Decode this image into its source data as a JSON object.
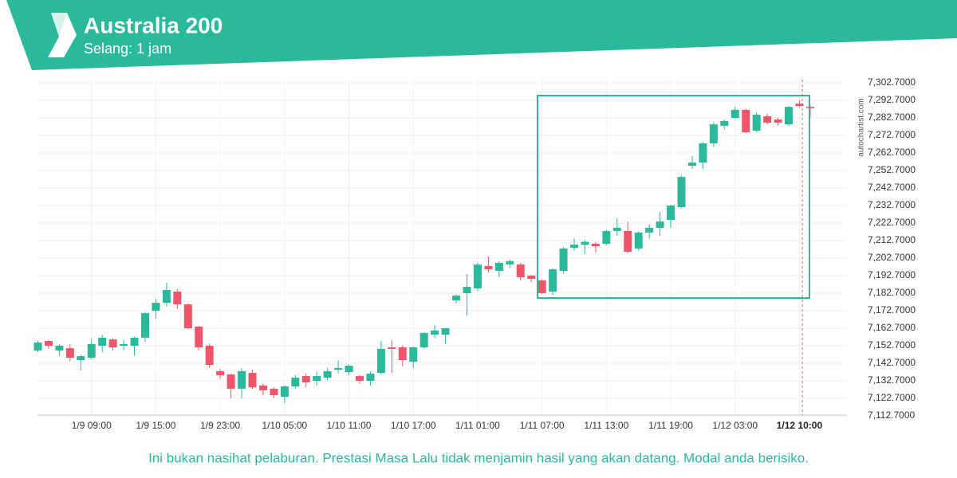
{
  "chart_data": {
    "type": "candlestick",
    "title": "Australia 200",
    "subtitle": "Selang: 1 jam",
    "watermark": "autochartist.com",
    "disclaimer": "Ini bukan nasihat pelaburan. Prestasi Masa Lalu tidak menjamin hasil yang akan datang. Modal anda berisiko.",
    "categories": [
      null,
      null,
      null,
      null,
      null,
      "1/9 09:00",
      null,
      null,
      null,
      null,
      null,
      "1/9 15:00",
      null,
      null,
      null,
      null,
      null,
      "1/9 23:00",
      null,
      null,
      null,
      null,
      null,
      "1/10 05:00",
      null,
      null,
      null,
      null,
      null,
      "1/10 11:00",
      null,
      null,
      null,
      null,
      null,
      "1/10 17:00",
      null,
      null,
      null,
      null,
      null,
      "1/11 01:00",
      null,
      null,
      null,
      null,
      null,
      "1/11 07:00",
      null,
      null,
      null,
      null,
      null,
      "1/11 13:00",
      null,
      null,
      null,
      null,
      null,
      "1/11 19:00",
      null,
      null,
      null,
      null,
      null,
      "1/12 03:00",
      null,
      null,
      null,
      null,
      null,
      "1/12 10:00",
      null
    ],
    "open": [
      7150.0,
      7155.4,
      7150.0,
      7151.3,
      7144.5,
      7145.9,
      7152.7,
      7156.3,
      7152.7,
      7152.7,
      7157.3,
      7172.7,
      7177.2,
      7183.6,
      7176.3,
      7163.6,
      7152.7,
      7138.2,
      7136.3,
      7128.2,
      7137.2,
      7130.0,
      7128.2,
      7123.6,
      7129.5,
      7135.4,
      7132.7,
      7134.5,
      7139.0,
      7137.7,
      7135.4,
      7132.7,
      7137.2,
      7151.8,
      7151.8,
      7143.6,
      7151.8,
      7159.0,
      7159.0,
      7178.6,
      7182.7,
      7185.4,
      7198.2,
      7195.4,
      7199.1,
      7199.1,
      7192.7,
      7190.0,
      7183.6,
      7195.4,
      7208.6,
      7210.4,
      7210.9,
      7210.9,
      7218.2,
      7218.2,
      7208.2,
      7217.3,
      7220.0,
      7224.5,
      7231.8,
      7255.4,
      7257.2,
      7268.2,
      7278.2,
      7282.7,
      7287.3,
      7275.4,
      7283.6,
      7281.8,
      7279.0,
      7290.9,
      7289.0
    ],
    "high": [
      7155.5,
      7156,
      7153.5,
      7153.6,
      7147.5,
      7157,
      7159,
      7157,
      7156,
      7158,
      7172,
      7179.5,
      7188.6,
      7185,
      7177,
      7164,
      7154,
      7139.5,
      7137,
      7140,
      7139,
      7131,
      7129,
      7130,
      7136,
      7137,
      7138,
      7140,
      7144.5,
      7142,
      7136,
      7138,
      7155.4,
      7156,
      7153,
      7152,
      7160.5,
      7164.5,
      7163,
      7182,
      7193.6,
      7200,
      7203.6,
      7201,
      7202,
      7200,
      7193,
      7190.5,
      7197,
      7209,
      7214,
      7213,
      7212,
      7219,
      7225.4,
      7223.6,
      7218,
      7222,
      7229,
      7233,
      7250,
      7260.9,
      7269,
      7280,
      7281.8,
      7289,
      7288,
      7286,
      7285,
      7282.7,
      7289.5,
      7292.7,
      7290
    ],
    "low": [
      7149,
      7151,
      7147,
      7143.6,
      7138.6,
      7145,
      7149,
      7150,
      7150,
      7147,
      7155,
      7168,
      7175,
      7173.6,
      7162,
      7150,
      7140,
      7134,
      7122.7,
      7122.7,
      7128,
      7124.5,
      7123,
      7120,
      7128,
      7129,
      7130,
      7133,
      7137,
      7136,
      7131,
      7130,
      7136,
      7137,
      7141,
      7140,
      7151,
      7157,
      7153.6,
      7177,
      7170,
      7184,
      7194.5,
      7191.8,
      7197,
      7190,
      7189,
      7182,
      7181.8,
      7194,
      7207,
      7205,
      7206,
      7210,
      7215.4,
      7205.4,
      7207,
      7214,
      7215.4,
      7220,
      7231,
      7253.6,
      7253.6,
      7266,
      7276,
      7282,
      7274,
      7274.5,
      7279,
      7278.2,
      7278,
      7289,
      7282.7
    ],
    "close": [
      7154.5,
      7152.7,
      7152.7,
      7145.9,
      7146.8,
      7153.6,
      7157.3,
      7151.8,
      7153.6,
      7157.3,
      7171.3,
      7177.2,
      7184.5,
      7176.3,
      7162.7,
      7151.8,
      7141.8,
      7135.9,
      7128.2,
      7138.2,
      7129.0,
      7127.3,
      7124.5,
      7129.5,
      7134.5,
      7131.8,
      7135.4,
      7138.2,
      7140.0,
      7141.3,
      7132.7,
      7136.8,
      7150.9,
      7150.9,
      7144.5,
      7151.8,
      7160.0,
      7161.4,
      7162.7,
      7181.3,
      7186.3,
      7199.0,
      7196.3,
      7200.0,
      7201.0,
      7191.8,
      7190.9,
      7182.7,
      7196.3,
      7208.2,
      7210.4,
      7212.0,
      7209.5,
      7218.2,
      7220.0,
      7206.3,
      7217.3,
      7220.0,
      7223.6,
      7232.7,
      7249.0,
      7257.2,
      7268.2,
      7279.0,
      7280.9,
      7287.3,
      7274.5,
      7284.5,
      7280.0,
      7280.0,
      7289.0,
      7289.5,
      7288.2
    ],
    "up_color": "#2bb99b",
    "down_color": "#f0566b",
    "ylim": [
      7112.7,
      7302.7
    ],
    "yticks": [
      {
        "value": 7112.7,
        "label": "7,112.7000"
      },
      {
        "value": 7122.7,
        "label": "7,122.7000"
      },
      {
        "value": 7132.7,
        "label": "7,132.7000"
      },
      {
        "value": 7142.7,
        "label": "7,142.7000"
      },
      {
        "value": 7152.7,
        "label": "7,152.7000"
      },
      {
        "value": 7162.7,
        "label": "7,162.7000"
      },
      {
        "value": 7172.7,
        "label": "7,172.7000"
      },
      {
        "value": 7182.7,
        "label": "7,182.7000"
      },
      {
        "value": 7192.7,
        "label": "7,192.7000"
      },
      {
        "value": 7202.7,
        "label": "7,202.7000"
      },
      {
        "value": 7212.7,
        "label": "7,212.7000"
      },
      {
        "value": 7222.7,
        "label": "7,222.7000"
      },
      {
        "value": 7232.7,
        "label": "7,232.7000"
      },
      {
        "value": 7242.7,
        "label": "7,242.7000"
      },
      {
        "value": 7252.7,
        "label": "7,252.7000"
      },
      {
        "value": 7262.7,
        "label": "7,262.7000"
      },
      {
        "value": 7272.7,
        "label": "7,272.7000"
      },
      {
        "value": 7282.7,
        "label": "7,282.7000"
      },
      {
        "value": 7292.7,
        "label": "7,292.7000"
      },
      {
        "value": 7302.7,
        "label": "7,302.7000"
      }
    ],
    "grid": true
  }
}
